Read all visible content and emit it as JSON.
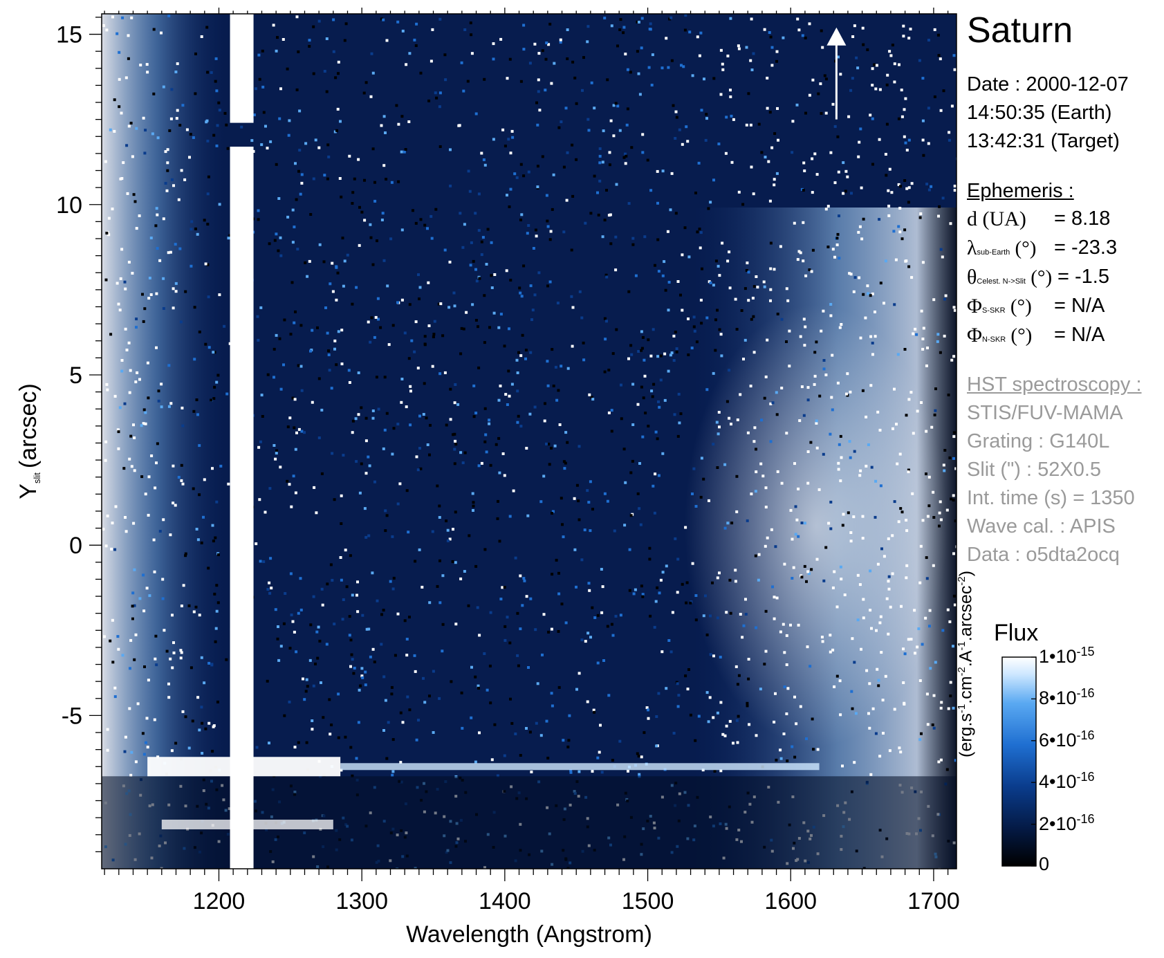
{
  "chart_data": {
    "type": "heatmap",
    "title": "Saturn",
    "xlabel": "Wavelength (Angstrom)",
    "ylabel_main": "Y",
    "ylabel_sub": "slit",
    "ylabel_unit": "(arcsec)",
    "xlim": [
      1118,
      1716
    ],
    "ylim": [
      -9.5,
      15.6
    ],
    "x_ticks": [
      1200,
      1300,
      1400,
      1500,
      1600,
      1700
    ],
    "y_ticks": [
      15,
      10,
      5,
      0,
      -5
    ],
    "x_tick_labels": [
      "1200",
      "1300",
      "1400",
      "1500",
      "1600",
      "1700"
    ],
    "y_tick_labels": [
      "15",
      "10",
      "5",
      "0",
      "-5"
    ],
    "features": {
      "lyman_alpha_wavelength": 1216,
      "lyman_alpha_gap_y": [
        11.7,
        12.4
      ],
      "horizontal_band_y": -6.5,
      "secondary_band_y": -8.2,
      "bright_band_x_end": 1285,
      "faint_band_x_end": 1620,
      "north_arrow_x": 1632,
      "north_arrow_y": [
        12.5,
        15.2
      ]
    },
    "colorscale": [
      "#000000",
      "#041a45",
      "#0a3c8c",
      "#1f6fd1",
      "#5aa9f2",
      "#cfe8ff",
      "#ffffff"
    ],
    "colorbar": {
      "title": "Flux",
      "range": [
        0,
        1e-15
      ],
      "ticks": [
        {
          "value": 1e-15,
          "mantissa": "1•10",
          "exponent": "-15"
        },
        {
          "value": 8e-16,
          "mantissa": "8•10",
          "exponent": "-16"
        },
        {
          "value": 6e-16,
          "mantissa": "6•10",
          "exponent": "-16"
        },
        {
          "value": 4e-16,
          "mantissa": "4•10",
          "exponent": "-16"
        },
        {
          "value": 2e-16,
          "mantissa": "2•10",
          "exponent": "-16"
        },
        {
          "value": 0,
          "mantissa": "0",
          "exponent": ""
        }
      ],
      "unit_parts": [
        "(erg.s",
        "-1",
        ".cm",
        "-2",
        ".A",
        "-1",
        ".arcsec",
        "-2",
        ")"
      ]
    }
  },
  "side_panel": {
    "planet": "Saturn",
    "date": "Date : 2000-12-07",
    "time_earth": "14:50:35 (Earth)",
    "time_target": "13:42:31 (Target)",
    "ephemeris_title": "Ephemeris :",
    "ephemeris": [
      {
        "symbol": "d (UA)",
        "sub": "",
        "unit": "",
        "value": "= 8.18"
      },
      {
        "symbol": "λ",
        "sub": "sub-Earth",
        "unit": " (°)",
        "value": "= -23.3"
      },
      {
        "symbol": "θ",
        "sub": "Celest. N->Slit",
        "unit": " (°)",
        "value": "= -1.5"
      },
      {
        "symbol": "Φ",
        "sub": "S-SKR",
        "unit": " (°)",
        "value": "= N/A"
      },
      {
        "symbol": "Φ",
        "sub": "N-SKR",
        "unit": " (°)",
        "value": "= N/A"
      }
    ],
    "hst_title": "HST spectroscopy :",
    "instrument": "STIS/FUV-MAMA",
    "grating": "Grating : G140L",
    "slit": "Slit (\") : 52X0.5",
    "int_time": "Int. time (s) = 1350",
    "wave_cal": "Wave cal. : APIS",
    "dataset": "Data : o5dta2ocq"
  }
}
